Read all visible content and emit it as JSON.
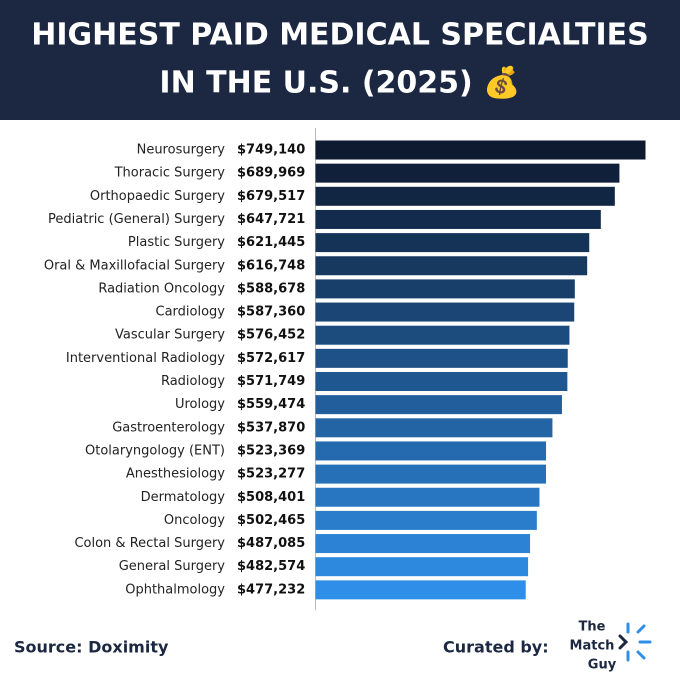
{
  "chart_data": {
    "type": "bar",
    "orientation": "horizontal",
    "title": [
      "HIGHEST PAID MEDICAL SPECIALTIES",
      "IN THE U.S. (2025) 💰"
    ],
    "categories": [
      "Neurosurgery",
      "Thoracic Surgery",
      "Orthopaedic Surgery",
      "Pediatric (General) Surgery",
      "Plastic Surgery",
      "Oral & Maxillofacial Surgery",
      "Radiation Oncology",
      "Cardiology",
      "Vascular Surgery",
      "Interventional Radiology",
      "Radiology",
      "Urology",
      "Gastroenterology",
      "Otolaryngology (ENT)",
      "Anesthesiology",
      "Dermatology",
      "Oncology",
      "Colon & Rectal Surgery",
      "General Surgery",
      "Ophthalmology"
    ],
    "values": [
      749140,
      689969,
      679517,
      647721,
      621445,
      616748,
      588678,
      587360,
      576452,
      572617,
      571749,
      559474,
      537870,
      523369,
      523277,
      508401,
      502465,
      487085,
      482574,
      477232
    ],
    "value_labels": [
      "$749,140",
      "$689,969",
      "$679,517",
      "$647,721",
      "$621,445",
      "$616,748",
      "$588,678",
      "$587,360",
      "$576,452",
      "$572,617",
      "$571,749",
      "$559,474",
      "$537,870",
      "$523,369",
      "$523,277",
      "$508,401",
      "$502,465",
      "$487,085",
      "$482,574",
      "$477,232"
    ],
    "color_start": "#0e1a30",
    "color_end": "#2f8fe8",
    "grid": false
  },
  "footer": {
    "source": "Source: Doximity",
    "curated_by": "Curated by:",
    "logo": [
      "The",
      "Match",
      "Guy"
    ]
  }
}
